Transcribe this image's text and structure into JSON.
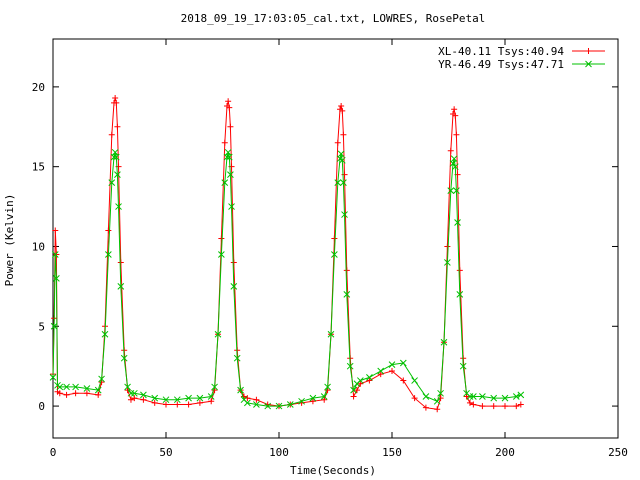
{
  "chart_data": {
    "type": "line",
    "title": "2018_09_19_17:03:05_cal.txt, LOWRES, RosePetal",
    "xlabel": "Time(Seconds)",
    "ylabel": "Power (Kelvin)",
    "xlim": [
      0,
      250
    ],
    "ylim": [
      -2,
      23
    ],
    "xticks": [
      0,
      50,
      100,
      150,
      200,
      250
    ],
    "yticks": [
      0,
      5,
      10,
      15,
      20
    ],
    "grid": false,
    "legend_position": "top-right",
    "series": [
      {
        "name": "XL-40.11 Tsys:40.94",
        "color": "#ff0000",
        "marker": "plus",
        "x": [
          0.0,
          0.5,
          1.0,
          1.5,
          2.0,
          3,
          6,
          10,
          15,
          20,
          21.5,
          23,
          24.5,
          26,
          27,
          27.5,
          28,
          28.5,
          29,
          30,
          31.5,
          33,
          34.5,
          36,
          40,
          45,
          50,
          55,
          60,
          65,
          70,
          71.5,
          73,
          74.5,
          76,
          77,
          77.5,
          78,
          78.5,
          79,
          80,
          81.5,
          83,
          84.5,
          86,
          90,
          95,
          100,
          105,
          110,
          115,
          120,
          121.5,
          123,
          124.5,
          126,
          127,
          127.5,
          128,
          128.5,
          129,
          130,
          131.5,
          133,
          134.5,
          136,
          140,
          145,
          150,
          155,
          160,
          165,
          170,
          171.5,
          173,
          174.5,
          176,
          177,
          177.5,
          178,
          178.5,
          179,
          180,
          181.5,
          183,
          184.5,
          186,
          190,
          195,
          200,
          205,
          207
        ],
        "y": [
          2.0,
          5.5,
          11.0,
          9.5,
          0.9,
          0.8,
          0.7,
          0.8,
          0.8,
          0.7,
          1.5,
          5.0,
          11.0,
          17.0,
          19.0,
          19.3,
          19.0,
          17.5,
          15.0,
          9.0,
          3.5,
          1.0,
          0.4,
          0.5,
          0.4,
          0.2,
          0.1,
          0.1,
          0.1,
          0.2,
          0.3,
          1.0,
          4.5,
          10.5,
          16.5,
          18.8,
          19.1,
          18.7,
          17.5,
          15.0,
          9.0,
          3.5,
          1.0,
          0.6,
          0.5,
          0.4,
          0.1,
          0.0,
          0.1,
          0.2,
          0.3,
          0.4,
          1.0,
          4.5,
          10.5,
          16.5,
          18.6,
          18.8,
          18.5,
          17.0,
          14.5,
          8.5,
          3.0,
          0.6,
          1.0,
          1.4,
          1.6,
          2.0,
          2.2,
          1.6,
          0.5,
          -0.1,
          -0.2,
          0.5,
          4.0,
          10.0,
          16.0,
          18.3,
          18.6,
          18.2,
          17.0,
          14.5,
          8.5,
          3.0,
          0.6,
          0.2,
          0.1,
          0.0,
          0.0,
          0.0,
          0.0,
          0.1
        ]
      },
      {
        "name": "YR-46.49 Tsys:47.71",
        "color": "#00c000",
        "marker": "cross",
        "x": [
          0.0,
          0.5,
          1.0,
          1.5,
          2.0,
          3,
          6,
          10,
          15,
          20,
          21.5,
          23,
          24.5,
          26,
          27,
          27.5,
          28,
          28.5,
          29,
          30,
          31.5,
          33,
          34.5,
          36,
          40,
          45,
          50,
          55,
          60,
          65,
          70,
          71.5,
          73,
          74.5,
          76,
          77,
          77.5,
          78,
          78.5,
          79,
          80,
          81.5,
          83,
          84.5,
          86,
          90,
          95,
          100,
          105,
          110,
          115,
          120,
          121.5,
          123,
          124.5,
          126,
          127,
          127.5,
          128,
          128.5,
          129,
          130,
          131.5,
          133,
          134.5,
          136,
          140,
          145,
          150,
          155,
          160,
          165,
          170,
          171.5,
          173,
          174.5,
          176,
          177,
          177.5,
          178,
          178.5,
          179,
          180,
          181.5,
          183,
          184.5,
          186,
          190,
          195,
          200,
          205,
          207
        ],
        "y": [
          1.8,
          5.0,
          9.5,
          8.0,
          1.3,
          1.2,
          1.2,
          1.2,
          1.1,
          1.0,
          1.7,
          4.5,
          9.5,
          14.0,
          15.6,
          15.9,
          15.6,
          14.5,
          12.5,
          7.5,
          3.0,
          1.2,
          0.8,
          0.8,
          0.7,
          0.5,
          0.4,
          0.4,
          0.5,
          0.5,
          0.6,
          1.2,
          4.5,
          9.5,
          14.0,
          15.6,
          15.9,
          15.6,
          14.5,
          12.5,
          7.5,
          3.0,
          1.0,
          0.4,
          0.2,
          0.1,
          0.0,
          0.0,
          0.1,
          0.3,
          0.5,
          0.6,
          1.2,
          4.5,
          9.5,
          14.0,
          15.5,
          15.8,
          15.4,
          14.0,
          12.0,
          7.0,
          2.5,
          1.0,
          1.4,
          1.6,
          1.8,
          2.2,
          2.6,
          2.7,
          1.6,
          0.6,
          0.3,
          0.8,
          4.0,
          9.0,
          13.5,
          15.2,
          15.5,
          15.0,
          13.5,
          11.5,
          7.0,
          2.5,
          0.8,
          0.6,
          0.6,
          0.6,
          0.5,
          0.5,
          0.6,
          0.7
        ]
      }
    ]
  }
}
